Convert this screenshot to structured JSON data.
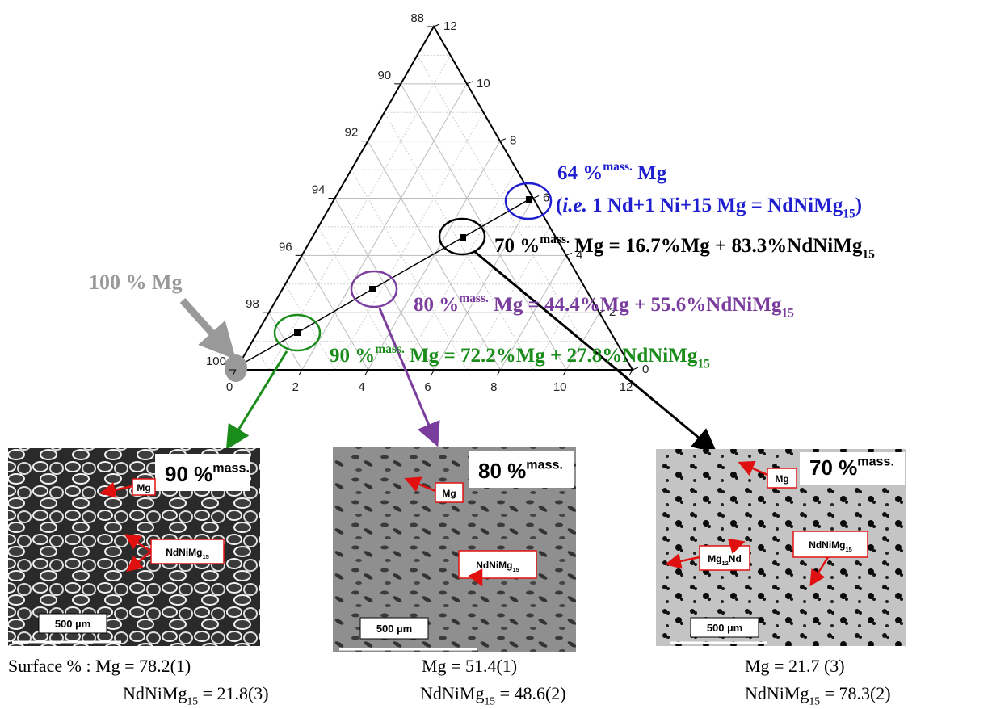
{
  "ternary": {
    "left_ticks": [
      100,
      98,
      96,
      94,
      92,
      90,
      88
    ],
    "bottom_ticks": [
      0,
      2,
      4,
      6,
      8,
      10,
      12
    ],
    "right_ticks": [
      0,
      2,
      4,
      6,
      8,
      10,
      12
    ]
  },
  "pure_label": "100 % Mg",
  "annotations": [
    {
      "color": "#1f1fd0",
      "segments": [
        {
          "text": "64 %"
        },
        {
          "sup": "mass."
        },
        {
          "text": " Mg"
        }
      ]
    },
    {
      "color": "#1f1fd0",
      "segments": [
        {
          "text": "("
        },
        {
          "italic": "i.e."
        },
        {
          "text": " 1 Nd+1 Ni+15 Mg = NdNiMg"
        },
        {
          "sub": "15"
        },
        {
          "text": ")"
        }
      ]
    },
    {
      "color": "#000000",
      "segments": [
        {
          "text": "70 %"
        },
        {
          "sup": "mass."
        },
        {
          "text": " Mg = 16.7%Mg + 83.3%NdNiMg"
        },
        {
          "sub": "15"
        }
      ]
    },
    {
      "color": "#7a3d9e",
      "segments": [
        {
          "text": "80 %"
        },
        {
          "sup": "mass."
        },
        {
          "text": " Mg = 44.4%Mg + 55.6%NdNiMg"
        },
        {
          "sub": "15"
        }
      ]
    },
    {
      "color": "#1a8c1a",
      "segments": [
        {
          "text": "90 %"
        },
        {
          "sup": "mass."
        },
        {
          "text": " Mg = 72.2%Mg + 27.8%NdNiMg"
        },
        {
          "sub": "15"
        }
      ]
    }
  ],
  "panels": [
    {
      "title": [
        {
          "text": "90 %"
        },
        {
          "sup": "mass."
        }
      ],
      "labels": [
        [
          {
            "text": "Mg"
          }
        ],
        [
          {
            "text": "NdNiMg"
          },
          {
            "sub": "15"
          }
        ]
      ],
      "scale": "500 µm",
      "caption": [
        [
          {
            "text": "Surface % : Mg = 78.2(1)"
          }
        ],
        [
          {
            "text": "NdNiMg"
          },
          {
            "sub": "15"
          },
          {
            "text": " = 21.8(3)"
          }
        ]
      ]
    },
    {
      "title": [
        {
          "text": "80 %"
        },
        {
          "sup": "mass."
        }
      ],
      "labels": [
        [
          {
            "text": "Mg"
          }
        ],
        [
          {
            "text": "NdNiMg"
          },
          {
            "sub": "15"
          }
        ]
      ],
      "scale": "500 µm",
      "caption": [
        [
          {
            "text": "Mg = 51.4(1)"
          }
        ],
        [
          {
            "text": "NdNiMg"
          },
          {
            "sub": "15"
          },
          {
            "text": " = 48.6(2)"
          }
        ]
      ]
    },
    {
      "title": [
        {
          "text": "70 %"
        },
        {
          "sup": "mass."
        }
      ],
      "labels": [
        [
          {
            "text": "Mg"
          }
        ],
        [
          {
            "text": "NdNiMg"
          },
          {
            "sub": "15"
          }
        ],
        [
          {
            "text": "Mg"
          },
          {
            "sub": "12"
          },
          {
            "text": "Nd"
          }
        ]
      ],
      "scale": "500 µm",
      "caption": [
        [
          {
            "text": "Mg = 21.7 (3)"
          }
        ],
        [
          {
            "text": "NdNiMg"
          },
          {
            "sub": "15"
          },
          {
            "text": " = 78.3(2)"
          }
        ]
      ]
    }
  ]
}
